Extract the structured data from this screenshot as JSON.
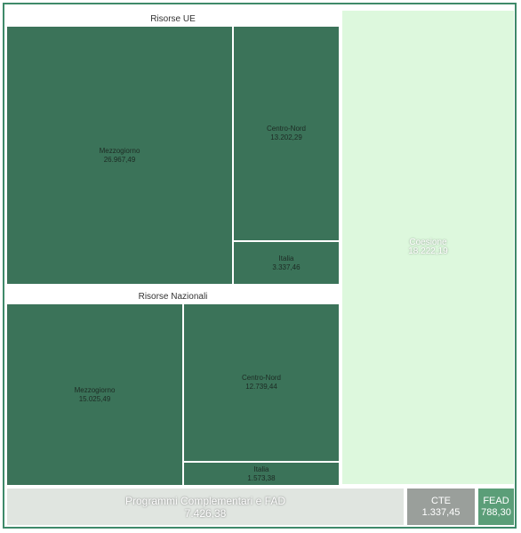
{
  "chart_data": {
    "type": "treemap",
    "groups": [
      {
        "name": "Risorse UE",
        "items": [
          {
            "label": "Mezzogiorno",
            "value_text": "26.967,49",
            "value": 26967.49
          },
          {
            "label": "Centro-Nord",
            "value_text": "13.202,29",
            "value": 13202.29
          },
          {
            "label": "Italia",
            "value_text": "3.337,46",
            "value": 3337.46
          }
        ]
      },
      {
        "name": "Risorse Nazionali",
        "items": [
          {
            "label": "Mezzogiorno",
            "value_text": "15.025,49",
            "value": 15025.49
          },
          {
            "label": "Centro-Nord",
            "value_text": "12.739,44",
            "value": 12739.44
          },
          {
            "label": "Italia",
            "value_text": "1.573,38",
            "value": 1573.38
          }
        ]
      }
    ],
    "standalone": [
      {
        "label": "Coesione",
        "value_text": "18.222,19",
        "value": 18222.19
      },
      {
        "label": "Programmi Complementari e FAD",
        "value_text": "7.426,38",
        "value": 7426.38
      },
      {
        "label": "CTE",
        "value_text": "1.337,45",
        "value": 1337.45
      },
      {
        "label": "FEAD",
        "value_text": "788,30",
        "value": 788.3
      }
    ],
    "colors": {
      "dark": "#3b7359",
      "light_panel": "#ddf8dd",
      "bottom_bar": "#e0e5e0",
      "cte": "#9a9f9b",
      "fead": "#5b9e78",
      "border": "#3f8a6a"
    }
  }
}
